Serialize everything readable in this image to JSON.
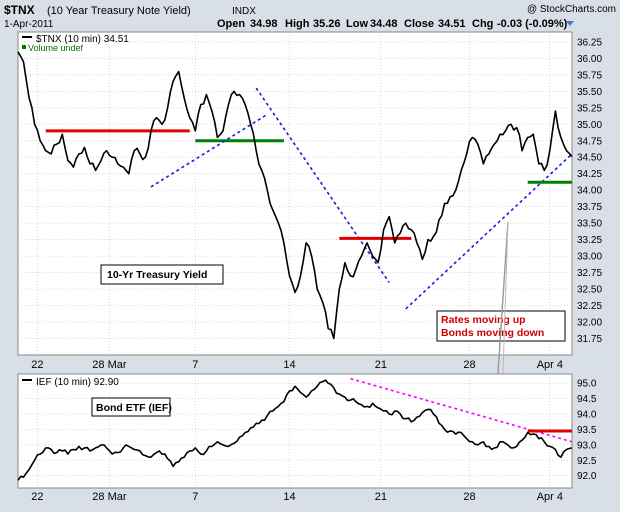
{
  "header": {
    "title": "$TNX",
    "subtitle": "(10 Year Treasury Note Yield)",
    "exchange": "INDX",
    "watermark": "@ StockCharts.com",
    "date": "1-Apr-2011",
    "open_label": "Open",
    "open": "34.98",
    "high_label": "High",
    "high": "35.26",
    "low_label": "Low",
    "low": "34.48",
    "close_label": "Close",
    "close": "34.51",
    "chg_label": "Chg",
    "chg": "-0.03 (-0.09%)"
  },
  "colors": {
    "background": "#d8dfe6",
    "panel": "#ffffff",
    "price": "#000000",
    "resistance": "#e00000",
    "support": "#008000",
    "trendline": "#1a1adf",
    "ief_trendline": "#ff00ff",
    "text_red": "#cc0000"
  },
  "chart_data": [
    {
      "type": "line",
      "legend": "$TNX (10 min) 34.51",
      "legend_sub": "Volume undef",
      "ylim": [
        31.5,
        36.4
      ],
      "x_ticks": [
        "22",
        "28 Mar",
        "7",
        "14",
        "21",
        "28",
        "Apr 4"
      ],
      "y_ticks": [
        "31.75",
        "32.00",
        "32.25",
        "32.50",
        "32.75",
        "33.00",
        "33.25",
        "33.50",
        "33.75",
        "34.00",
        "34.25",
        "34.50",
        "34.75",
        "35.00",
        "35.25",
        "35.50",
        "35.75",
        "36.00",
        "36.25"
      ],
      "annotations": [
        "10-Yr Treasury Yield",
        "Rates moving up",
        "Bonds moving down"
      ],
      "series": [
        {
          "x": [
            0.0,
            0.01,
            0.02,
            0.03,
            0.04,
            0.05,
            0.06,
            0.07,
            0.08,
            0.09,
            0.1,
            0.11,
            0.12,
            0.13,
            0.14,
            0.15,
            0.16,
            0.17,
            0.18,
            0.19,
            0.2,
            0.21,
            0.22,
            0.23,
            0.24,
            0.25,
            0.26,
            0.27,
            0.28,
            0.29,
            0.3,
            0.31,
            0.32,
            0.33,
            0.34,
            0.35,
            0.36,
            0.37,
            0.38,
            0.39,
            0.4,
            0.41,
            0.42,
            0.43,
            0.44,
            0.45,
            0.46,
            0.47,
            0.48,
            0.49,
            0.5,
            0.51,
            0.52,
            0.53,
            0.54,
            0.55,
            0.56,
            0.57,
            0.58,
            0.59,
            0.6,
            0.61,
            0.62,
            0.63,
            0.64,
            0.65,
            0.66,
            0.67,
            0.68,
            0.69,
            0.7,
            0.71,
            0.72,
            0.73,
            0.74,
            0.75,
            0.76,
            0.77,
            0.78,
            0.79,
            0.8,
            0.81,
            0.82,
            0.83,
            0.84,
            0.85,
            0.86,
            0.87,
            0.88,
            0.89,
            0.9,
            0.91,
            0.92,
            0.93,
            0.94,
            0.95,
            0.96,
            0.97,
            0.98,
            0.99,
            1.0
          ],
          "values": [
            36.1,
            35.95,
            35.4,
            35.0,
            34.75,
            34.6,
            34.55,
            34.7,
            34.85,
            34.45,
            34.35,
            34.55,
            34.65,
            34.4,
            34.3,
            34.45,
            34.6,
            34.5,
            34.4,
            34.35,
            34.25,
            34.6,
            34.55,
            34.5,
            34.9,
            35.1,
            35.0,
            35.25,
            35.65,
            35.8,
            35.4,
            35.1,
            34.9,
            35.3,
            35.45,
            35.2,
            34.8,
            34.9,
            35.3,
            35.5,
            35.45,
            35.3,
            35.0,
            34.6,
            34.3,
            34.0,
            33.7,
            33.5,
            33.2,
            32.7,
            32.45,
            32.7,
            33.2,
            33.0,
            32.5,
            32.3,
            31.9,
            31.75,
            32.5,
            32.9,
            32.7,
            32.8,
            33.0,
            33.2,
            33.0,
            32.9,
            33.4,
            33.6,
            33.2,
            33.35,
            33.5,
            33.4,
            33.2,
            32.95,
            33.25,
            33.3,
            33.55,
            33.8,
            33.9,
            34.0,
            34.3,
            34.55,
            34.8,
            34.7,
            34.4,
            34.55,
            34.7,
            34.85,
            34.9,
            35.0,
            34.95,
            34.6,
            34.8,
            34.85,
            34.4,
            34.3,
            34.6,
            35.2,
            34.8,
            34.6,
            34.51
          ]
        }
      ],
      "overlays": [
        {
          "kind": "resistance",
          "x": [
            0.05,
            0.31
          ],
          "y": [
            34.9,
            34.9
          ]
        },
        {
          "kind": "support",
          "x": [
            0.32,
            0.48
          ],
          "y": [
            34.75,
            34.75
          ]
        },
        {
          "kind": "trendline",
          "x": [
            0.24,
            0.45
          ],
          "y": [
            34.05,
            35.15
          ]
        },
        {
          "kind": "trendline",
          "x": [
            0.43,
            0.67
          ],
          "y": [
            35.55,
            32.6
          ]
        },
        {
          "kind": "resistance",
          "x": [
            0.58,
            0.71
          ],
          "y": [
            33.27,
            33.27
          ]
        },
        {
          "kind": "trendline",
          "x": [
            0.7,
            1.01
          ],
          "y": [
            32.2,
            34.55
          ]
        },
        {
          "kind": "support",
          "x": [
            0.92,
            1.01
          ],
          "y": [
            34.12,
            34.12
          ]
        }
      ]
    },
    {
      "type": "line",
      "legend": "IEF (10 min) 92.90",
      "ylim": [
        91.6,
        95.3
      ],
      "x_ticks": [
        "22",
        "28 Mar",
        "7",
        "14",
        "21",
        "28",
        "Apr 4"
      ],
      "y_ticks": [
        "92.0",
        "92.5",
        "93.0",
        "93.5",
        "94.0",
        "94.5",
        "95.0"
      ],
      "annotations": [
        "Bond ETF (IEF)"
      ],
      "series": [
        {
          "x": [
            0.0,
            0.01,
            0.02,
            0.03,
            0.04,
            0.05,
            0.06,
            0.07,
            0.08,
            0.09,
            0.1,
            0.11,
            0.12,
            0.13,
            0.14,
            0.15,
            0.16,
            0.17,
            0.18,
            0.19,
            0.2,
            0.21,
            0.22,
            0.23,
            0.24,
            0.25,
            0.26,
            0.27,
            0.28,
            0.29,
            0.3,
            0.31,
            0.32,
            0.33,
            0.34,
            0.35,
            0.36,
            0.37,
            0.38,
            0.39,
            0.4,
            0.41,
            0.42,
            0.43,
            0.44,
            0.45,
            0.46,
            0.47,
            0.48,
            0.49,
            0.5,
            0.51,
            0.52,
            0.53,
            0.54,
            0.55,
            0.56,
            0.57,
            0.58,
            0.59,
            0.6,
            0.61,
            0.62,
            0.63,
            0.64,
            0.65,
            0.66,
            0.67,
            0.68,
            0.69,
            0.7,
            0.71,
            0.72,
            0.73,
            0.74,
            0.75,
            0.76,
            0.77,
            0.78,
            0.79,
            0.8,
            0.81,
            0.82,
            0.83,
            0.84,
            0.85,
            0.86,
            0.87,
            0.88,
            0.89,
            0.9,
            0.91,
            0.92,
            0.93,
            0.94,
            0.95,
            0.96,
            0.97,
            0.98,
            0.99,
            1.0
          ],
          "values": [
            91.85,
            91.95,
            92.2,
            92.5,
            92.7,
            92.9,
            92.85,
            92.75,
            92.8,
            92.7,
            92.85,
            92.95,
            92.9,
            92.8,
            92.9,
            93.0,
            92.9,
            92.7,
            92.75,
            92.9,
            92.95,
            92.85,
            92.8,
            92.65,
            92.6,
            92.75,
            92.7,
            92.55,
            92.3,
            92.45,
            92.6,
            92.8,
            92.9,
            92.7,
            92.8,
            92.95,
            93.1,
            93.0,
            92.95,
            93.05,
            93.25,
            93.4,
            93.55,
            93.7,
            93.8,
            93.95,
            94.1,
            94.25,
            94.4,
            94.75,
            94.9,
            94.7,
            94.55,
            94.75,
            94.9,
            95.05,
            95.0,
            94.85,
            94.65,
            94.55,
            94.45,
            94.4,
            94.3,
            94.25,
            94.35,
            94.2,
            94.1,
            94.0,
            94.1,
            94.0,
            93.85,
            93.75,
            93.9,
            94.05,
            94.15,
            94.0,
            93.7,
            93.5,
            93.45,
            93.35,
            93.4,
            93.2,
            93.1,
            93.0,
            93.1,
            92.95,
            92.9,
            93.1,
            93.05,
            92.9,
            92.95,
            93.15,
            93.4,
            93.35,
            93.2,
            93.1,
            92.95,
            92.85,
            92.6,
            92.85,
            92.9
          ]
        }
      ],
      "overlays": [
        {
          "kind": "trendline-magenta",
          "x": [
            0.6,
            1.01
          ],
          "y": [
            95.15,
            93.1
          ]
        },
        {
          "kind": "resistance",
          "x": [
            0.92,
            1.01
          ],
          "y": [
            93.45,
            93.45
          ]
        }
      ]
    }
  ]
}
